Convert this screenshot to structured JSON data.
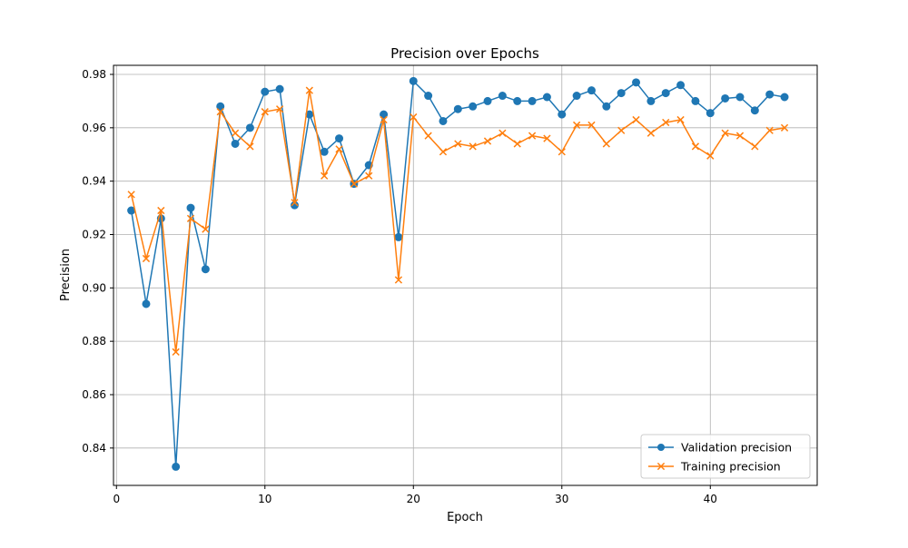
{
  "chart_data": {
    "type": "line",
    "title": "Precision over Epochs",
    "xlabel": "Epoch",
    "ylabel": "Precision",
    "xlim": [
      -0.2,
      47.2
    ],
    "ylim": [
      0.826,
      0.9834
    ],
    "xticks": [
      0,
      10,
      20,
      30,
      40
    ],
    "yticks": [
      0.84,
      0.86,
      0.88,
      0.9,
      0.92,
      0.94,
      0.96,
      0.98
    ],
    "ytick_labels": [
      "0.84",
      "0.86",
      "0.88",
      "0.90",
      "0.92",
      "0.94",
      "0.96",
      "0.98"
    ],
    "grid": true,
    "legend_position": "lower right",
    "x": [
      1,
      2,
      3,
      4,
      5,
      6,
      7,
      8,
      9,
      10,
      11,
      12,
      13,
      14,
      15,
      16,
      17,
      18,
      19,
      20,
      21,
      22,
      23,
      24,
      25,
      26,
      27,
      28,
      29,
      30,
      31,
      32,
      33,
      34,
      35,
      36,
      37,
      38,
      39,
      40,
      41,
      42,
      43,
      44,
      45
    ],
    "series": [
      {
        "name": "Validation precision",
        "color": "#1f77b4",
        "marker": "circle",
        "values": [
          0.929,
          0.894,
          0.926,
          0.833,
          0.93,
          0.907,
          0.968,
          0.954,
          0.96,
          0.9735,
          0.9745,
          0.931,
          0.965,
          0.951,
          0.956,
          0.939,
          0.946,
          0.965,
          0.919,
          0.9775,
          0.972,
          0.9625,
          0.967,
          0.968,
          0.97,
          0.972,
          0.97,
          0.97,
          0.9715,
          0.965,
          0.972,
          0.974,
          0.968,
          0.973,
          0.977,
          0.97,
          0.973,
          0.976,
          0.97,
          0.9655,
          0.971,
          0.9715,
          0.9665,
          0.9725,
          0.9715
        ]
      },
      {
        "name": "Training precision",
        "color": "#ff7f0e",
        "marker": "x",
        "values": [
          0.935,
          0.911,
          0.929,
          0.876,
          0.926,
          0.922,
          0.966,
          0.958,
          0.953,
          0.966,
          0.967,
          0.932,
          0.974,
          0.942,
          0.952,
          0.939,
          0.942,
          0.963,
          0.903,
          0.964,
          0.957,
          0.951,
          0.954,
          0.953,
          0.955,
          0.958,
          0.954,
          0.957,
          0.956,
          0.951,
          0.961,
          0.961,
          0.954,
          0.959,
          0.963,
          0.958,
          0.962,
          0.963,
          0.953,
          0.9495,
          0.958,
          0.957,
          0.953,
          0.959,
          0.96
        ]
      }
    ]
  }
}
